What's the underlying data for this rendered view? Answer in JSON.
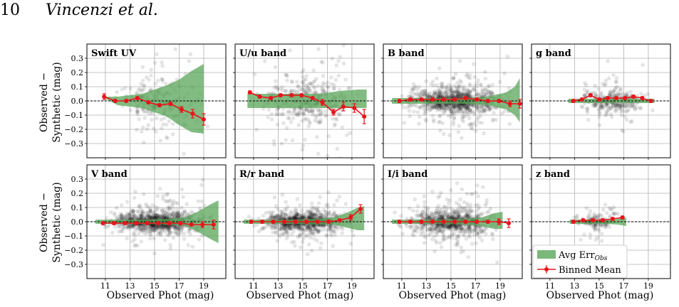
{
  "header": {
    "page_number": "10",
    "authors": "Vincenzi et al."
  },
  "figure": {
    "ylabel_line1": "Observed −",
    "ylabel_line2": "Synthetic (mag)",
    "xlabel": "Observed Phot (mag)",
    "legend": {
      "band_label": "Avg Err",
      "band_sub": "Obs",
      "line_label": "Binned Mean"
    },
    "colors": {
      "scatter": "#000000",
      "band": "#5aa65a",
      "mean": "#e8141a",
      "zero_line": "#000000",
      "grid": "#b0b0b0"
    }
  },
  "chart_data": [
    {
      "type": "scatter",
      "title": "Swift UV",
      "density": 0.45,
      "spread": 0.14,
      "xrange": [
        10.8,
        19.8
      ],
      "xlim": [
        9.5,
        20.8
      ],
      "ylim": [
        -0.4,
        0.4
      ],
      "xticks": [
        "11",
        "13",
        "15",
        "17",
        "19"
      ],
      "yticks": [
        "0.3",
        "0.2",
        "0.1",
        "0.0",
        "−0.1",
        "−0.2",
        "−0.3"
      ],
      "binned_mean": {
        "x": [
          10.9,
          11.8,
          12.7,
          13.6,
          14.5,
          15.4,
          16.3,
          17.2,
          18.1,
          19.0
        ],
        "y": [
          0.03,
          0.0,
          0.0,
          0.02,
          -0.01,
          -0.03,
          -0.02,
          -0.06,
          -0.09,
          -0.13
        ],
        "err": [
          0.02,
          0.01,
          0.01,
          0.01,
          0.01,
          0.01,
          0.01,
          0.02,
          0.03,
          0.04
        ]
      },
      "avg_err": {
        "x": [
          10.9,
          12.0,
          13.0,
          14.0,
          15.0,
          16.0,
          17.0,
          18.0,
          19.0
        ],
        "lo": [
          0.02,
          -0.03,
          -0.04,
          -0.05,
          -0.08,
          -0.11,
          -0.17,
          -0.22,
          -0.23
        ],
        "hi": [
          0.03,
          0.03,
          0.04,
          0.05,
          0.08,
          0.11,
          0.15,
          0.21,
          0.26
        ]
      }
    },
    {
      "type": "scatter",
      "title": "U/u band",
      "density": 0.75,
      "spread": 0.14,
      "xrange": [
        10.3,
        20.3
      ],
      "xlim": [
        9.5,
        20.8
      ],
      "ylim": [
        -0.4,
        0.4
      ],
      "xticks": [
        "11",
        "13",
        "15",
        "17",
        "19"
      ],
      "yticks": [],
      "binned_mean": {
        "x": [
          10.7,
          11.5,
          12.4,
          13.2,
          14.1,
          14.9,
          15.8,
          16.6,
          17.5,
          18.3,
          19.2,
          20.0
        ],
        "y": [
          0.06,
          0.03,
          0.02,
          0.04,
          0.04,
          0.04,
          0.02,
          -0.01,
          -0.08,
          -0.04,
          -0.05,
          -0.11
        ],
        "err": [
          0.01,
          0.01,
          0.01,
          0.01,
          0.01,
          0.01,
          0.01,
          0.02,
          0.02,
          0.03,
          0.03,
          0.05
        ]
      },
      "avg_err": {
        "x": [
          10.5,
          12.0,
          13.5,
          15.0,
          16.5,
          18.0,
          19.5,
          20.2
        ],
        "lo": [
          -0.05,
          -0.05,
          -0.05,
          -0.05,
          -0.05,
          -0.05,
          -0.05,
          -0.05
        ],
        "hi": [
          0.05,
          0.05,
          0.05,
          0.05,
          0.05,
          0.07,
          0.08,
          0.08
        ]
      }
    },
    {
      "type": "scatter",
      "title": "B band",
      "density": 1.9,
      "spread": 0.07,
      "xrange": [
        10.2,
        20.6
      ],
      "xlim": [
        9.5,
        20.8
      ],
      "ylim": [
        -0.4,
        0.4
      ],
      "xticks": [
        "11",
        "13",
        "15",
        "17",
        "19"
      ],
      "yticks": [],
      "binned_mean": {
        "x": [
          10.8,
          11.7,
          12.6,
          13.5,
          14.4,
          15.3,
          16.2,
          17.1,
          18.0,
          18.9,
          19.8,
          20.6
        ],
        "y": [
          0.0,
          0.01,
          0.01,
          0.01,
          0.01,
          0.01,
          0.02,
          0.01,
          0.0,
          0.0,
          -0.02,
          -0.02
        ],
        "err": [
          0.01,
          0.01,
          0.01,
          0.01,
          0.01,
          0.01,
          0.01,
          0.01,
          0.01,
          0.01,
          0.02,
          0.03
        ]
      },
      "avg_err": {
        "x": [
          10.2,
          12.0,
          14.0,
          16.0,
          18.0,
          19.5,
          20.2,
          20.6
        ],
        "lo": [
          -0.02,
          -0.02,
          -0.02,
          -0.02,
          -0.03,
          -0.06,
          -0.1,
          -0.15
        ],
        "hi": [
          0.02,
          0.02,
          0.02,
          0.02,
          0.03,
          0.06,
          0.1,
          0.16
        ]
      }
    },
    {
      "type": "scatter",
      "title": "g band",
      "density": 0.6,
      "spread": 0.06,
      "xrange": [
        12.4,
        19.8
      ],
      "xlim": [
        9.5,
        20.8
      ],
      "ylim": [
        -0.4,
        0.4
      ],
      "xticks": [
        "11",
        "13",
        "15",
        "17",
        "19"
      ],
      "yticks": [],
      "binned_mean": {
        "x": [
          12.9,
          13.6,
          14.3,
          15.0,
          15.7,
          16.4,
          17.1,
          17.8,
          18.5,
          19.2
        ],
        "y": [
          0.0,
          0.01,
          0.04,
          0.01,
          0.02,
          0.02,
          0.02,
          0.03,
          0.02,
          0.0
        ],
        "err": [
          0.01,
          0.01,
          0.01,
          0.01,
          0.01,
          0.01,
          0.01,
          0.01,
          0.01,
          0.01
        ]
      },
      "avg_err": {
        "x": [
          12.5,
          14.0,
          16.0,
          18.0,
          19.5
        ],
        "lo": [
          -0.015,
          -0.015,
          -0.015,
          -0.015,
          -0.015
        ],
        "hi": [
          0.015,
          0.015,
          0.015,
          0.015,
          0.015
        ]
      }
    },
    {
      "type": "scatter",
      "title": "V band",
      "density": 1.9,
      "spread": 0.06,
      "xrange": [
        10.2,
        20.2
      ],
      "xlim": [
        9.5,
        20.8
      ],
      "ylim": [
        -0.4,
        0.4
      ],
      "xticks": [
        "11",
        "13",
        "15",
        "17",
        "19"
      ],
      "yticks": [
        "0.3",
        "0.2",
        "0.1",
        "0.0",
        "−0.1",
        "−0.2",
        "−0.3"
      ],
      "binned_mean": {
        "x": [
          10.8,
          11.7,
          12.6,
          13.5,
          14.4,
          15.3,
          16.2,
          17.1,
          18.0,
          18.9,
          19.8
        ],
        "y": [
          -0.01,
          -0.01,
          -0.01,
          -0.01,
          -0.01,
          -0.01,
          -0.01,
          -0.01,
          -0.02,
          -0.02,
          -0.02
        ],
        "err": [
          0.01,
          0.01,
          0.01,
          0.01,
          0.01,
          0.01,
          0.01,
          0.01,
          0.01,
          0.02,
          0.03
        ]
      },
      "avg_err": {
        "x": [
          10.2,
          12.0,
          14.0,
          16.0,
          17.5,
          18.5,
          19.5,
          20.2
        ],
        "lo": [
          -0.015,
          -0.015,
          -0.015,
          -0.02,
          -0.03,
          -0.07,
          -0.12,
          -0.15
        ],
        "hi": [
          0.015,
          0.015,
          0.015,
          0.02,
          0.03,
          0.07,
          0.12,
          0.15
        ]
      }
    },
    {
      "type": "scatter",
      "title": "R/r band",
      "density": 1.7,
      "spread": 0.06,
      "xrange": [
        10.2,
        20.0
      ],
      "xlim": [
        9.5,
        20.8
      ],
      "ylim": [
        -0.4,
        0.4
      ],
      "xticks": [
        "11",
        "13",
        "15",
        "17",
        "19"
      ],
      "yticks": [],
      "binned_mean": {
        "x": [
          10.8,
          11.7,
          12.6,
          13.5,
          14.4,
          15.3,
          16.2,
          17.1,
          18.0,
          18.9,
          19.7
        ],
        "y": [
          0.0,
          0.0,
          0.0,
          0.0,
          0.0,
          0.0,
          0.0,
          0.0,
          0.01,
          0.03,
          0.09
        ],
        "err": [
          0.01,
          0.01,
          0.01,
          0.01,
          0.01,
          0.01,
          0.01,
          0.01,
          0.01,
          0.02,
          0.03
        ]
      },
      "avg_err": {
        "x": [
          10.2,
          12.0,
          14.0,
          16.0,
          17.5,
          18.5,
          19.5,
          20.0
        ],
        "lo": [
          -0.015,
          -0.015,
          -0.015,
          -0.02,
          -0.02,
          -0.04,
          -0.06,
          -0.06
        ],
        "hi": [
          0.015,
          0.015,
          0.015,
          0.02,
          0.03,
          0.06,
          0.1,
          0.11
        ]
      }
    },
    {
      "type": "scatter",
      "title": "I/i band",
      "density": 1.6,
      "spread": 0.07,
      "xrange": [
        10.2,
        19.8
      ],
      "xlim": [
        9.5,
        20.8
      ],
      "ylim": [
        -0.4,
        0.4
      ],
      "xticks": [
        "11",
        "13",
        "15",
        "17",
        "19"
      ],
      "yticks": [],
      "binned_mean": {
        "x": [
          10.8,
          11.7,
          12.6,
          13.5,
          14.4,
          15.3,
          16.2,
          17.1,
          18.0,
          18.9,
          19.7
        ],
        "y": [
          0.0,
          0.0,
          0.0,
          0.0,
          0.0,
          0.0,
          0.0,
          0.0,
          0.0,
          0.0,
          -0.01
        ],
        "err": [
          0.01,
          0.01,
          0.01,
          0.01,
          0.01,
          0.01,
          0.01,
          0.01,
          0.01,
          0.02,
          0.03
        ]
      },
      "avg_err": {
        "x": [
          10.2,
          12.0,
          14.0,
          16.0,
          17.5,
          18.5,
          19.2
        ],
        "lo": [
          -0.015,
          -0.015,
          -0.015,
          -0.02,
          -0.03,
          -0.05,
          -0.05
        ],
        "hi": [
          0.015,
          0.015,
          0.015,
          0.02,
          0.03,
          0.06,
          0.07
        ]
      }
    },
    {
      "type": "scatter",
      "title": "z band",
      "density": 0.3,
      "spread": 0.05,
      "xrange": [
        12.6,
        17.3
      ],
      "xlim": [
        9.5,
        20.8
      ],
      "ylim": [
        -0.4,
        0.4
      ],
      "xticks": [
        "11",
        "13",
        "15",
        "17",
        "19"
      ],
      "yticks": [],
      "binned_mean": {
        "x": [
          12.9,
          13.7,
          14.5,
          15.3,
          16.1,
          16.9
        ],
        "y": [
          0.0,
          0.01,
          0.01,
          0.01,
          0.02,
          0.03
        ],
        "err": [
          0.01,
          0.01,
          0.01,
          0.01,
          0.01,
          0.01
        ]
      },
      "avg_err": {
        "x": [
          12.6,
          14.0,
          15.5,
          16.5,
          17.2
        ],
        "lo": [
          -0.015,
          -0.015,
          -0.015,
          -0.02,
          -0.03
        ],
        "hi": [
          0.015,
          0.015,
          0.015,
          0.02,
          0.03
        ]
      }
    }
  ]
}
